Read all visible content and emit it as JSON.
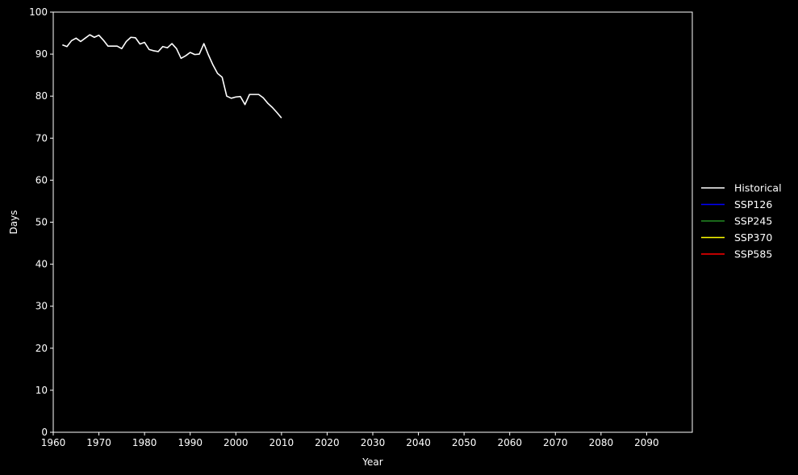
{
  "chart_data": {
    "type": "line",
    "title": "",
    "xlabel": "Year",
    "ylabel": "Days",
    "xlim": [
      1960,
      2100
    ],
    "ylim": [
      0,
      100
    ],
    "x_ticks": [
      1960,
      1970,
      1980,
      1990,
      2000,
      2010,
      2020,
      2030,
      2040,
      2050,
      2060,
      2070,
      2080,
      2090
    ],
    "y_ticks": [
      0,
      10,
      20,
      30,
      40,
      50,
      60,
      70,
      80,
      90,
      100
    ],
    "grid": false,
    "legend_position": "right",
    "series": [
      {
        "name": "Historical",
        "color": "#ffffff",
        "x": [
          1962,
          1963,
          1964,
          1965,
          1966,
          1967,
          1968,
          1969,
          1970,
          1971,
          1972,
          1973,
          1974,
          1975,
          1976,
          1977,
          1978,
          1979,
          1980,
          1981,
          1982,
          1983,
          1984,
          1985,
          1986,
          1987,
          1988,
          1989,
          1990,
          1991,
          1992,
          1993,
          1994,
          1995,
          1996,
          1997,
          1998,
          1999,
          2000,
          2001,
          2002,
          2003,
          2004,
          2005,
          2006,
          2007,
          2008,
          2009,
          2010
        ],
        "y": [
          92.2,
          91.8,
          93.2,
          93.8,
          93.0,
          93.8,
          94.6,
          94.0,
          94.5,
          93.3,
          91.9,
          91.9,
          91.9,
          91.3,
          93.0,
          94.0,
          93.9,
          92.4,
          92.8,
          91.1,
          90.8,
          90.6,
          91.8,
          91.5,
          92.5,
          91.3,
          89.0,
          89.6,
          90.4,
          89.9,
          90.0,
          92.5,
          89.8,
          87.4,
          85.4,
          84.5,
          80.0,
          79.5,
          79.8,
          79.9,
          78.0,
          80.4,
          80.4,
          80.4,
          79.6,
          78.3,
          77.3,
          76.1,
          74.8
        ]
      },
      {
        "name": "SSP126",
        "color": "#0000ff",
        "x": [],
        "y": []
      },
      {
        "name": "SSP245",
        "color": "#228b22",
        "x": [],
        "y": []
      },
      {
        "name": "SSP370",
        "color": "#ffff00",
        "x": [],
        "y": []
      },
      {
        "name": "SSP585",
        "color": "#ff0000",
        "x": [],
        "y": []
      }
    ]
  }
}
